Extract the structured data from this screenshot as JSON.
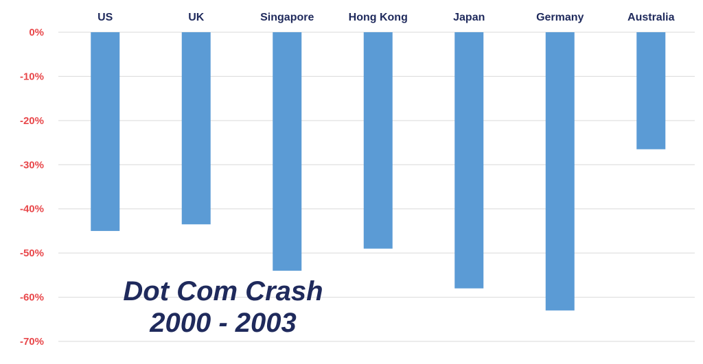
{
  "chart_data": {
    "type": "bar",
    "title": [
      "Dot Com Crash",
      "2000 - 2003"
    ],
    "categories": [
      "US",
      "UK",
      "Singapore",
      "Hong Kong",
      "Japan",
      "Germany",
      "Australia"
    ],
    "values": [
      -45,
      -43.5,
      -54,
      -49,
      -58,
      -63,
      -26.5
    ],
    "y_ticks": [
      0,
      -10,
      -20,
      -30,
      -40,
      -50,
      -60,
      -70
    ],
    "y_tick_labels": [
      "0%",
      "-10%",
      "-20%",
      "-30%",
      "-40%",
      "-50%",
      "-60%",
      "-70%"
    ],
    "ylim": [
      -70,
      0
    ],
    "grid": true,
    "legend": "none",
    "category_axis_position": "top",
    "colors": {
      "bar": "#5b9bd5",
      "grid": "#d9d9d9",
      "tick_label": "#e8474a",
      "category_label": "#1f2a5c",
      "title": "#1f2a5c"
    }
  }
}
